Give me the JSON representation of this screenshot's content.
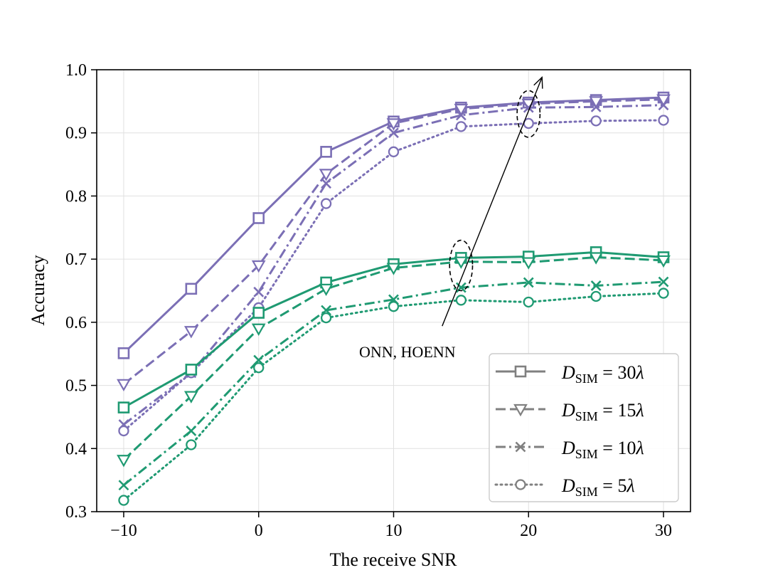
{
  "chart_data": {
    "type": "line",
    "title": "",
    "xlabel": "The receive SNR",
    "ylabel": "Accuracy",
    "xlim": [
      -12,
      32
    ],
    "ylim": [
      0.3,
      1.0
    ],
    "x": [
      -10,
      -5,
      0,
      5,
      10,
      15,
      20,
      25,
      30
    ],
    "xticks": [
      -10,
      0,
      10,
      20,
      30
    ],
    "xtick_labels": [
      "−10",
      "0",
      "10",
      "20",
      "30"
    ],
    "yticks": [
      0.3,
      0.4,
      0.5,
      0.6,
      0.7,
      0.8,
      0.9,
      1.0
    ],
    "ytick_labels": [
      "0.3",
      "0.4",
      "0.5",
      "0.6",
      "0.7",
      "0.8",
      "0.9",
      "1.0"
    ],
    "grid": true,
    "colors": {
      "purple": "#7b6fb5",
      "green": "#1f9a72",
      "legend_gray": "#808080",
      "annotation": "#000000"
    },
    "series": [
      {
        "name": "HOENN D_SIM = 30λ",
        "group": "purple",
        "style": "solid",
        "marker": "square",
        "values": [
          0.551,
          0.653,
          0.765,
          0.87,
          0.918,
          0.94,
          0.948,
          0.952,
          0.956
        ]
      },
      {
        "name": "HOENN D_SIM = 15λ",
        "group": "purple",
        "style": "dashed",
        "marker": "triangle_down",
        "values": [
          0.502,
          0.586,
          0.69,
          0.835,
          0.915,
          0.938,
          0.946,
          0.95,
          0.953
        ]
      },
      {
        "name": "HOENN D_SIM = 10λ",
        "group": "purple",
        "style": "dashdot",
        "marker": "x",
        "values": [
          0.438,
          0.52,
          0.648,
          0.82,
          0.9,
          0.928,
          0.94,
          0.941,
          0.944
        ]
      },
      {
        "name": "HOENN D_SIM = 5λ",
        "group": "purple",
        "style": "dotted",
        "marker": "circle",
        "values": [
          0.428,
          0.52,
          0.623,
          0.788,
          0.87,
          0.91,
          0.915,
          0.919,
          0.92
        ]
      },
      {
        "name": "ONN D_SIM = 30λ",
        "group": "green",
        "style": "solid",
        "marker": "square",
        "values": [
          0.465,
          0.525,
          0.615,
          0.663,
          0.692,
          0.702,
          0.704,
          0.711,
          0.703
        ]
      },
      {
        "name": "ONN D_SIM = 15λ",
        "group": "green",
        "style": "dashed",
        "marker": "triangle_down",
        "values": [
          0.382,
          0.483,
          0.59,
          0.653,
          0.686,
          0.696,
          0.695,
          0.703,
          0.698
        ]
      },
      {
        "name": "ONN D_SIM = 10λ",
        "group": "green",
        "style": "dashdot",
        "marker": "x",
        "values": [
          0.342,
          0.428,
          0.54,
          0.619,
          0.636,
          0.655,
          0.663,
          0.658,
          0.664
        ]
      },
      {
        "name": "ONN D_SIM = 5λ",
        "group": "green",
        "style": "dotted",
        "marker": "circle",
        "values": [
          0.318,
          0.406,
          0.528,
          0.607,
          0.625,
          0.635,
          0.632,
          0.641,
          0.646
        ]
      }
    ],
    "annotations": {
      "text": "ONN, HOENN",
      "arrow_from": [
        13.6,
        0.594
      ],
      "arrow_to": [
        21.0,
        0.988
      ],
      "ellipses": [
        {
          "center": [
            15.0,
            0.69
          ],
          "radius": [
            0.85,
            0.04
          ]
        },
        {
          "center": [
            20.0,
            0.93
          ],
          "radius": [
            0.85,
            0.037
          ]
        }
      ]
    },
    "legend": {
      "position": "lower-right",
      "entries": [
        {
          "symbol": "D",
          "subscript": "SIM",
          "rest": " = 30",
          "unit": "λ",
          "style": "solid",
          "marker": "square"
        },
        {
          "symbol": "D",
          "subscript": "SIM",
          "rest": " = 15",
          "unit": "λ",
          "style": "dashed",
          "marker": "triangle_down"
        },
        {
          "symbol": "D",
          "subscript": "SIM",
          "rest": " = 10",
          "unit": "λ",
          "style": "dashdot",
          "marker": "x"
        },
        {
          "symbol": "D",
          "subscript": "SIM",
          "rest": " = 5",
          "unit": "λ",
          "style": "dotted",
          "marker": "circle"
        }
      ]
    }
  }
}
